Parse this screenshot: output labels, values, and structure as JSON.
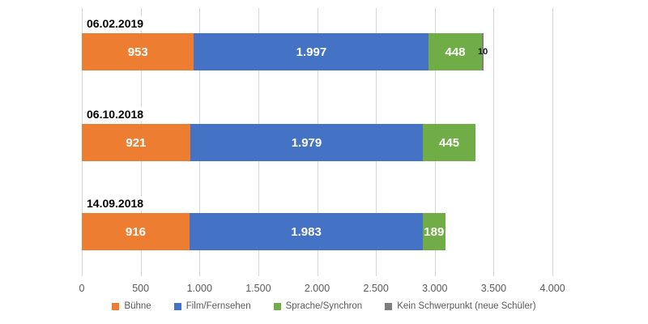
{
  "chart_data": {
    "type": "bar",
    "orientation": "horizontal-stacked",
    "title": "",
    "xlabel": "",
    "ylabel": "",
    "xlim": [
      0,
      4000
    ],
    "x_ticks": [
      "0",
      "500",
      "1.000",
      "1.500",
      "2.000",
      "2.500",
      "3.000",
      "3.500",
      "4.000"
    ],
    "x_tick_values": [
      0,
      500,
      1000,
      1500,
      2000,
      2500,
      3000,
      3500,
      4000
    ],
    "grid": true,
    "legend_position": "bottom",
    "categories": [
      "06.02.2019",
      "06.10.2018",
      "14.09.2018"
    ],
    "series": [
      {
        "name": "Bühne",
        "color": "#ED7D31",
        "values": [
          953,
          921,
          916
        ]
      },
      {
        "name": "Film/Fernsehen",
        "color": "#4472C4",
        "values": [
          1997,
          1979,
          1983
        ]
      },
      {
        "name": "Sprache/Synchron",
        "color": "#70AD47",
        "values": [
          448,
          445,
          189
        ]
      },
      {
        "name": "Kein Schwerpunkt (neue Schüler)",
        "color": "#7F7F7F",
        "values": [
          10,
          0,
          0
        ]
      }
    ],
    "value_labels": [
      [
        "953",
        "1.997",
        "448",
        "10"
      ],
      [
        "921",
        "1.979",
        "445",
        ""
      ],
      [
        "916",
        "1.983",
        "189",
        ""
      ]
    ],
    "colors": {
      "background": "#FFFFFF",
      "gridline": "#D6D6D6",
      "axis_text": "#595959",
      "date_label_text": "#000000",
      "value_label_text": "#FFFFFF"
    }
  }
}
